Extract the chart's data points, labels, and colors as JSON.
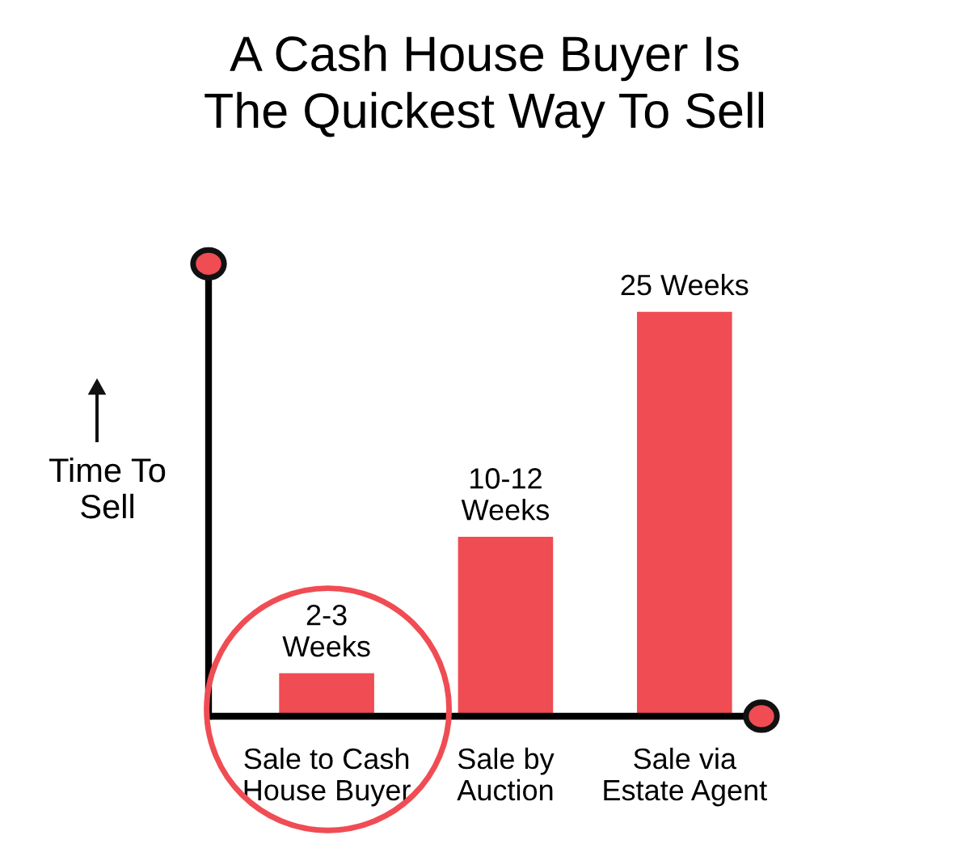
{
  "chart_data": {
    "type": "bar",
    "title": "A Cash House Buyer Is\nThe Quickest Way To Sell",
    "ylabel": "Time To\nSell",
    "categories": [
      "Sale to Cash\nHouse Buyer",
      "Sale by\nAuction",
      "Sale via\nEstate Agent"
    ],
    "values": [
      2.5,
      11,
      25
    ],
    "value_labels": [
      "2-3\nWeeks",
      "10-12\nWeeks",
      "25 Weeks"
    ],
    "color": "#f04c53",
    "grid": false,
    "legend": false
  }
}
